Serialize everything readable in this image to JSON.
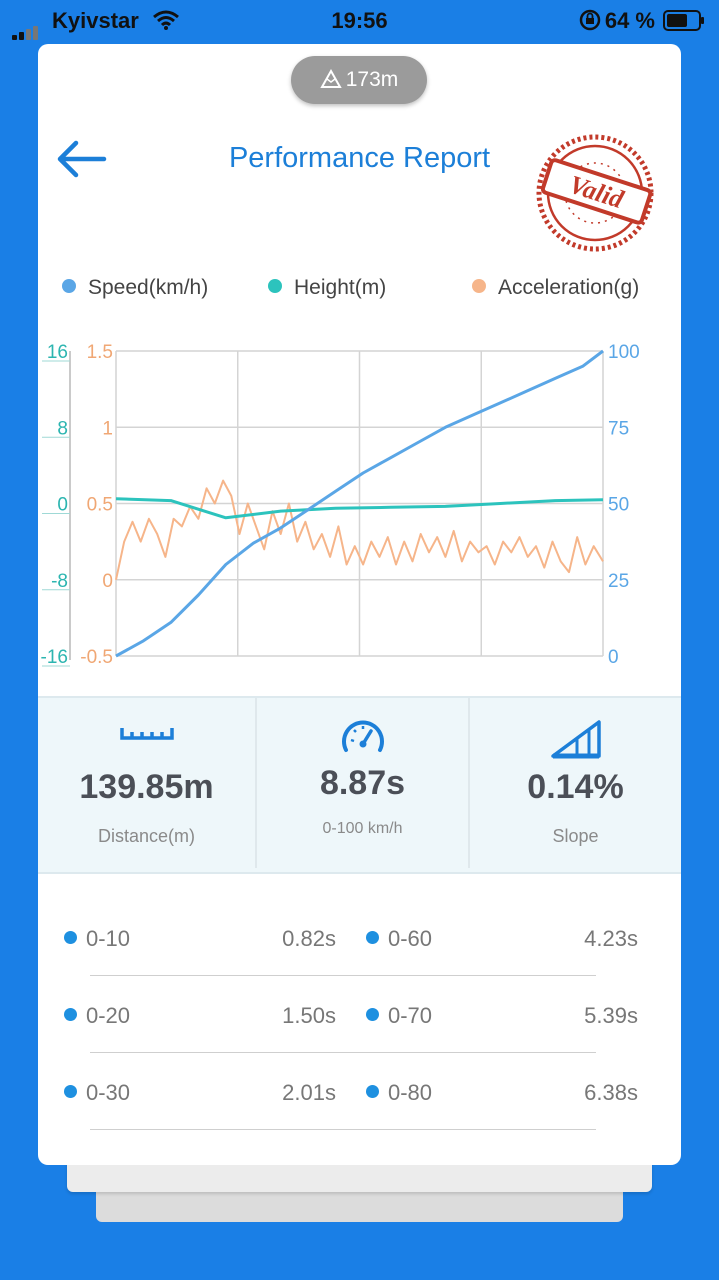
{
  "status_bar": {
    "carrier": "Kyivstar",
    "time": "19:56",
    "battery": "64 %"
  },
  "header": {
    "altitude": "173m",
    "title": "Performance Report",
    "stamp_text": "Valid"
  },
  "legend": [
    {
      "label": "Speed(km/h)",
      "color": "#5aa6e6"
    },
    {
      "label": "Height(m)",
      "color": "#2cc3bd"
    },
    {
      "label": "Acceleration(g)",
      "color": "#f6b58a"
    }
  ],
  "chart_data": {
    "type": "line",
    "axes": {
      "height_ticks": [
        "16",
        "8",
        "0",
        "-8",
        "-16"
      ],
      "accel_ticks": [
        "1.5",
        "1",
        "0.5",
        "0",
        "-0.5"
      ],
      "speed_ticks": [
        "100",
        "75",
        "50",
        "25",
        "0"
      ],
      "height_range": [
        -16,
        16
      ],
      "accel_range": [
        -0.5,
        1.5
      ],
      "speed_range": [
        0,
        100
      ],
      "x_range": [
        0,
        8.87
      ],
      "grid": true
    },
    "series": [
      {
        "name": "Speed(km/h)",
        "color": "#5aa6e6",
        "x": [
          0,
          0.5,
          1.0,
          1.5,
          2.0,
          2.5,
          3.0,
          3.5,
          4.0,
          4.5,
          5.0,
          5.5,
          6.0,
          6.5,
          7.0,
          7.5,
          8.0,
          8.5,
          8.87
        ],
        "y": [
          0,
          5,
          11,
          20,
          30,
          37,
          42,
          48,
          54,
          60,
          65,
          70,
          75,
          79,
          83,
          87,
          91,
          95,
          100
        ]
      },
      {
        "name": "Height(m)",
        "color": "#2cc3bd",
        "x": [
          0,
          1.0,
          2.0,
          3.0,
          4.0,
          5.0,
          6.0,
          7.0,
          8.0,
          8.87
        ],
        "y": [
          0.5,
          0.3,
          -1.5,
          -0.8,
          -0.5,
          -0.4,
          -0.3,
          0.0,
          0.3,
          0.4
        ]
      },
      {
        "name": "Acceleration(g)",
        "color": "#f6b58a",
        "x": [
          0,
          0.15,
          0.3,
          0.45,
          0.6,
          0.75,
          0.9,
          1.05,
          1.2,
          1.35,
          1.5,
          1.65,
          1.8,
          1.95,
          2.1,
          2.25,
          2.4,
          2.55,
          2.7,
          2.85,
          3.0,
          3.15,
          3.3,
          3.45,
          3.6,
          3.75,
          3.9,
          4.05,
          4.2,
          4.35,
          4.5,
          4.65,
          4.8,
          4.95,
          5.1,
          5.25,
          5.4,
          5.55,
          5.7,
          5.85,
          6.0,
          6.15,
          6.3,
          6.45,
          6.6,
          6.75,
          6.9,
          7.05,
          7.2,
          7.35,
          7.5,
          7.65,
          7.8,
          7.95,
          8.1,
          8.25,
          8.4,
          8.55,
          8.7,
          8.87
        ],
        "y": [
          0.0,
          0.25,
          0.38,
          0.25,
          0.4,
          0.3,
          0.15,
          0.4,
          0.35,
          0.48,
          0.4,
          0.6,
          0.5,
          0.65,
          0.55,
          0.3,
          0.5,
          0.35,
          0.2,
          0.45,
          0.3,
          0.5,
          0.25,
          0.38,
          0.2,
          0.3,
          0.15,
          0.35,
          0.1,
          0.22,
          0.1,
          0.25,
          0.15,
          0.28,
          0.1,
          0.25,
          0.12,
          0.3,
          0.18,
          0.28,
          0.15,
          0.32,
          0.12,
          0.25,
          0.18,
          0.22,
          0.1,
          0.25,
          0.18,
          0.28,
          0.15,
          0.22,
          0.08,
          0.25,
          0.12,
          0.05,
          0.28,
          0.1,
          0.22,
          0.12
        ]
      }
    ]
  },
  "stats": [
    {
      "value": "139.85m",
      "label": "Distance(m)",
      "icon": "ruler-icon"
    },
    {
      "value": "8.87s",
      "label": "0-100 km/h",
      "icon": "speedometer-icon"
    },
    {
      "value": "0.14%",
      "label": "Slope",
      "icon": "slope-icon"
    }
  ],
  "splits": [
    [
      {
        "range": "0-10",
        "time": "0.82s"
      },
      {
        "range": "0-60",
        "time": "4.23s"
      }
    ],
    [
      {
        "range": "0-20",
        "time": "1.50s"
      },
      {
        "range": "0-70",
        "time": "5.39s"
      }
    ],
    [
      {
        "range": "0-30",
        "time": "2.01s"
      },
      {
        "range": "0-80",
        "time": "6.38s"
      }
    ]
  ]
}
